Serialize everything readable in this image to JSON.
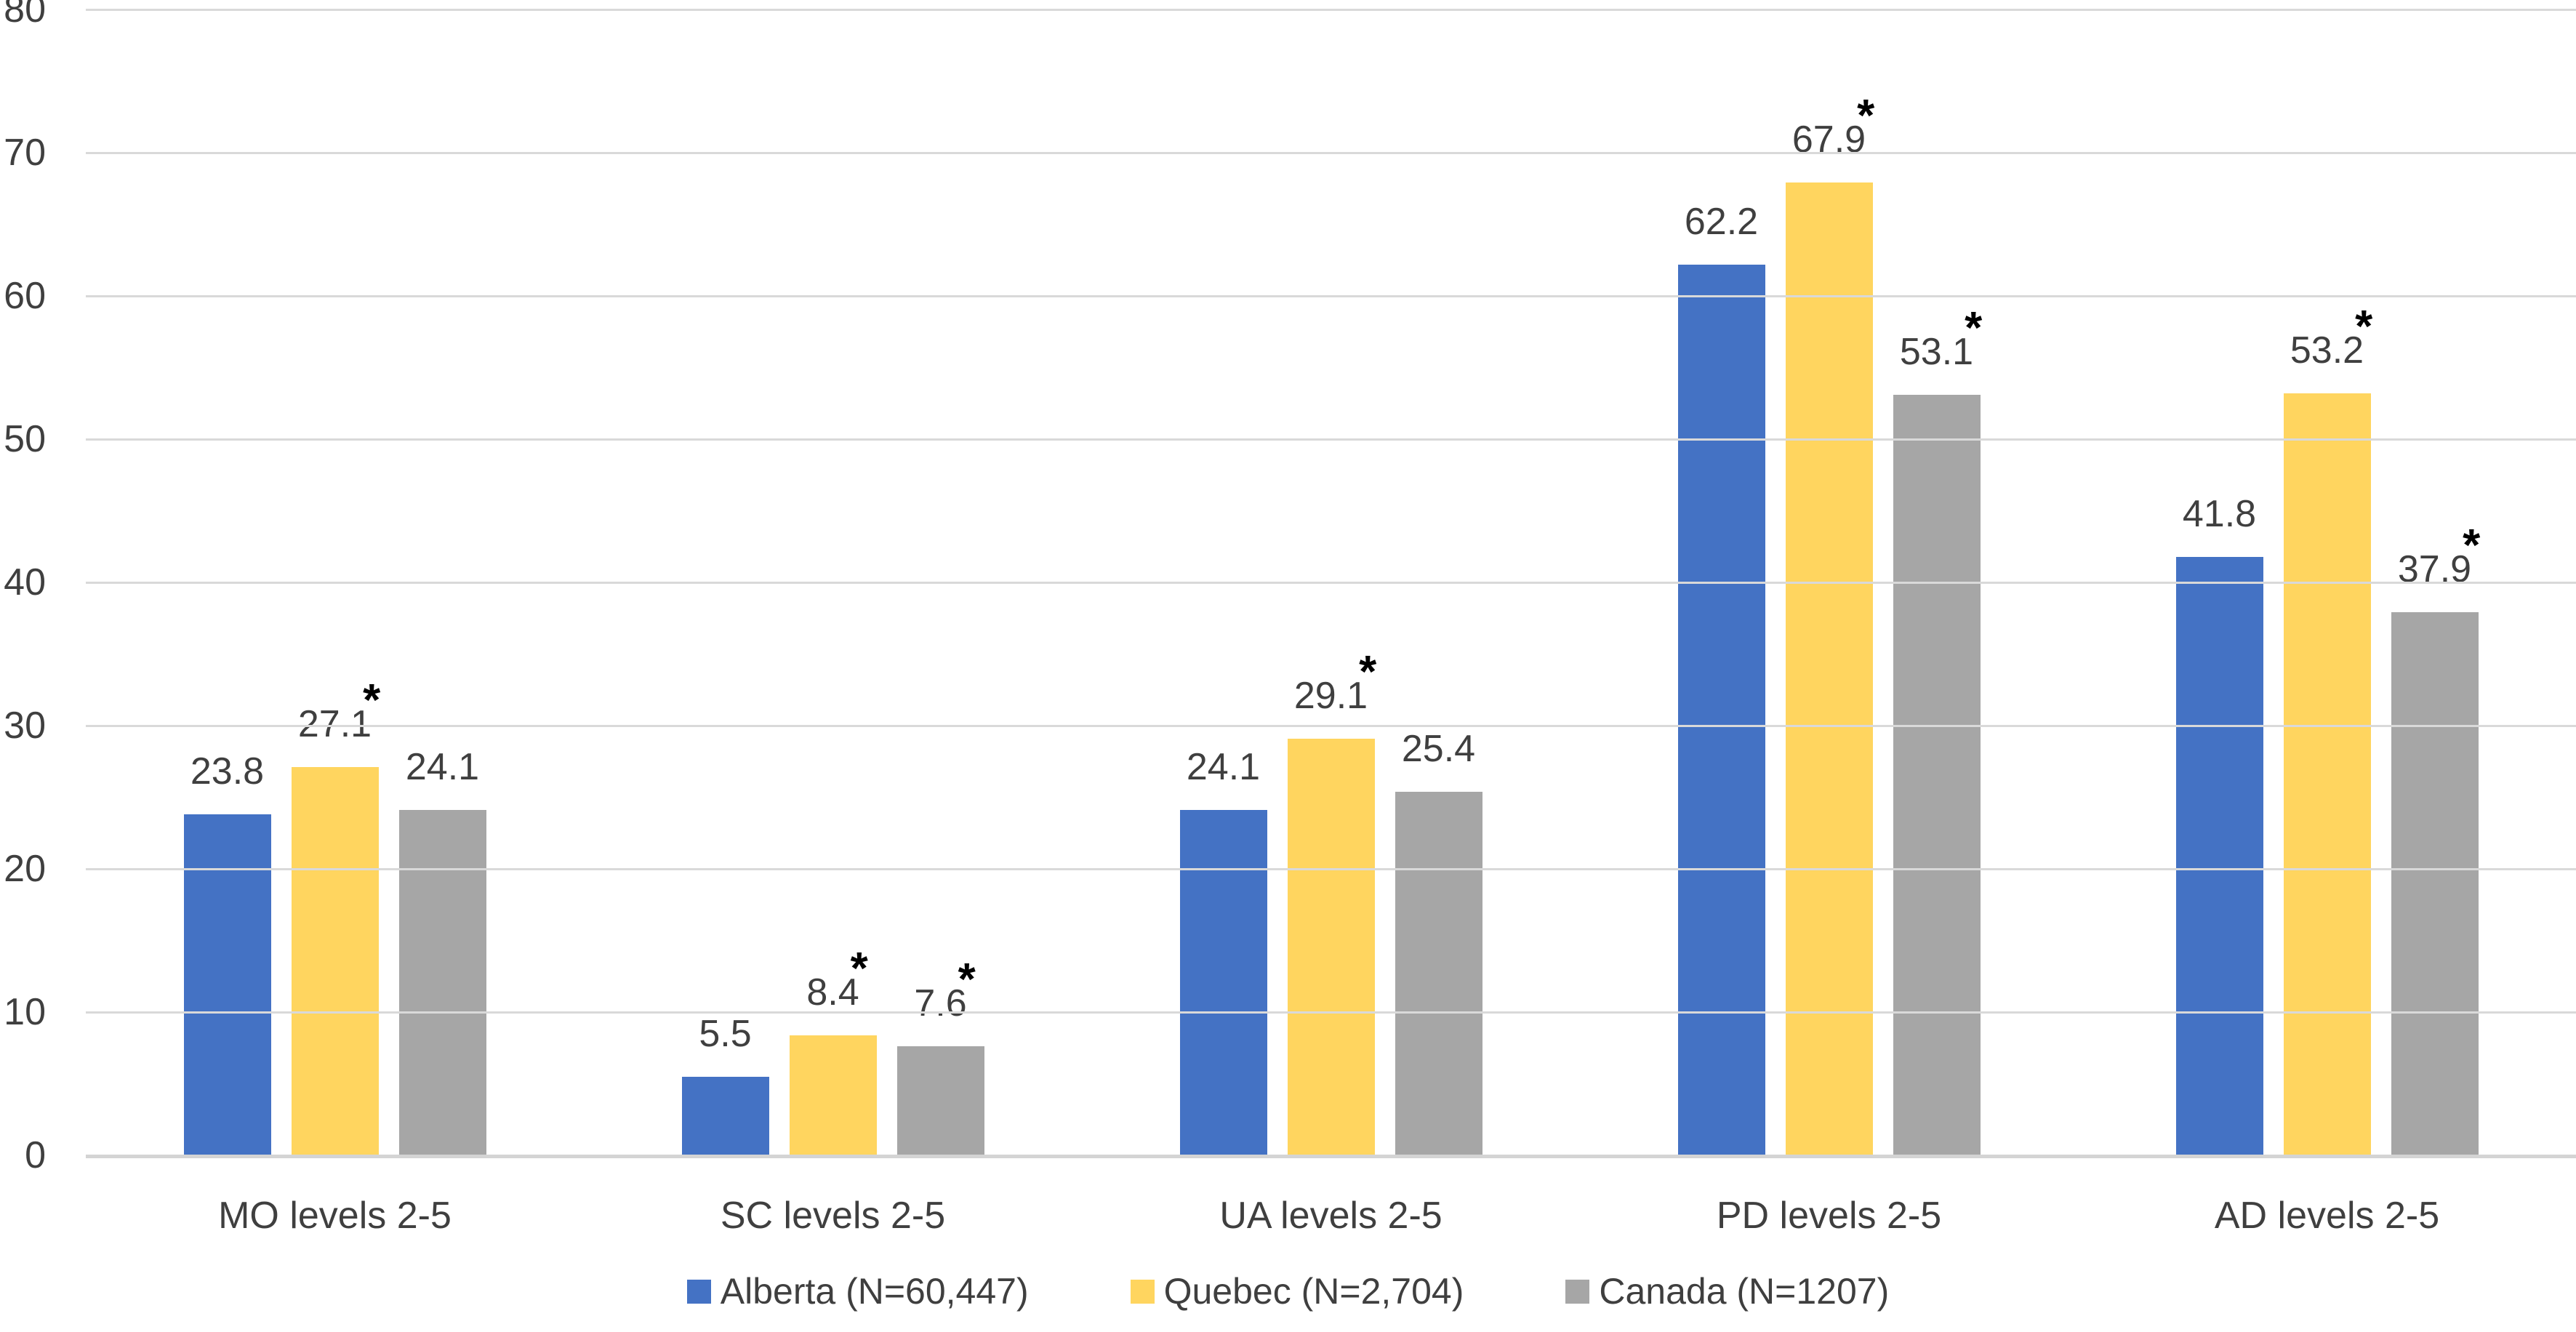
{
  "chart_data": {
    "type": "bar",
    "title": "",
    "xlabel": "",
    "ylabel": "",
    "categories": [
      "MO levels 2-5",
      "SC levels 2-5",
      "UA levels 2-5",
      "PD levels 2-5",
      "AD levels 2-5"
    ],
    "series": [
      {
        "name": "Alberta (N=60,447)",
        "color": "#4472C4",
        "values": [
          23.8,
          5.5,
          24.1,
          62.2,
          41.8
        ],
        "significant": [
          false,
          false,
          false,
          false,
          false
        ]
      },
      {
        "name": "Quebec (N=2,704)",
        "color": "#FFD55F",
        "values": [
          27.1,
          8.4,
          29.1,
          67.9,
          53.2
        ],
        "significant": [
          true,
          true,
          true,
          true,
          true
        ]
      },
      {
        "name": "Canada (N=1207)",
        "color": "#A6A6A6",
        "values": [
          24.1,
          7.6,
          25.4,
          53.1,
          37.9
        ],
        "significant": [
          false,
          true,
          false,
          true,
          true
        ]
      }
    ],
    "significance_marker": "*",
    "ylim": [
      0,
      80
    ],
    "ytick_step": 10,
    "yticks": [
      0,
      10,
      20,
      30,
      40,
      50,
      60,
      70,
      80
    ],
    "grid": true,
    "legend_position": "bottom"
  },
  "colors": {
    "gridline": "#D9D9D9",
    "axis_text": "#3F3F3F",
    "asterisk": "#000000",
    "background": "#FFFFFF"
  }
}
